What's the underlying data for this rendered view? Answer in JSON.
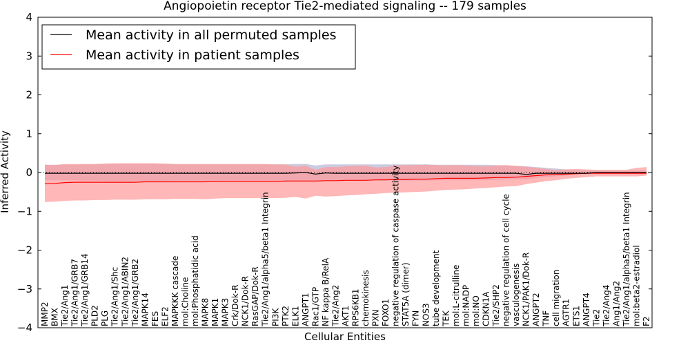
{
  "chart_data": {
    "type": "line",
    "title": "Angiopoietin receptor Tie2-mediated signaling -- 179 samples",
    "xlabel": "Cellular Entities",
    "ylabel": "Inferred Activity",
    "ylim": [
      -4,
      4
    ],
    "yticks": [
      "−4",
      "−3",
      "−2",
      "−1",
      "0",
      "1",
      "2",
      "3",
      "4"
    ],
    "grid": false,
    "legend_position": "top-left",
    "categories": [
      "MMP2",
      "BMX",
      "Tie2/Ang1",
      "Tie2/Ang1/GRB7",
      "Tie2/Ang1/GRB14",
      "PLD2",
      "PLG",
      "Tie2/Ang1/Shc",
      "Tie2/Ang1/ABIN2",
      "Tie2/Ang1/GRB2",
      "MAPK14",
      "FES",
      "ELF2",
      "MAPKKK cascade",
      "mol:Choline",
      "mol:Phosphatidic acid",
      "MAPK8",
      "MAPK1",
      "MAPK3",
      "Crk/Dok-R",
      "NCK1/Dok-R",
      "RasGAP/Dok-R",
      "Tie2/Ang1/alpha5/beta1 Integrin",
      "PI3K",
      "PTK2",
      "ELK1",
      "ANGPT1",
      "Rac1/GTP",
      "NF kappa B/RelA",
      "Tie2/Ang2",
      "AKT1",
      "RPS6KB1",
      "chemokinesis",
      "PXN",
      "FOXO1",
      "negative regulation of caspase activity",
      "STAT5A (dimer)",
      "FYN",
      "NOS3",
      "tube development",
      "TEK",
      "mol:L-citrulline",
      "mol:NADP",
      "mol:NO",
      "CDKN1A",
      "Tie2/SHP2",
      "negative regulation of cell cycle",
      "vasculogenesis",
      "NCK1/PAK1/Dok-R",
      "ANGPT2",
      "TNF",
      "cell migration",
      "AGTR1",
      "ETS1",
      "ANGPT4",
      "Tie2",
      "Tie2/Ang4",
      "Ang1/Ang2",
      "Tie2/Ang1/alpha5/beta1 Integrin",
      "mol:beta2-estradiol",
      "F2"
    ],
    "series": [
      {
        "name": "Mean activity in all permuted samples",
        "color": "#000000",
        "band_color": "#a0a0c8",
        "values": [
          -0.02,
          -0.02,
          -0.02,
          -0.02,
          -0.02,
          -0.02,
          -0.02,
          -0.02,
          -0.02,
          -0.02,
          -0.02,
          -0.02,
          -0.02,
          -0.02,
          -0.02,
          -0.02,
          -0.02,
          -0.02,
          -0.02,
          -0.02,
          -0.02,
          -0.02,
          -0.02,
          -0.02,
          -0.02,
          -0.01,
          0.0,
          -0.04,
          -0.01,
          -0.02,
          -0.02,
          -0.02,
          -0.02,
          -0.02,
          -0.02,
          -0.02,
          -0.02,
          -0.02,
          -0.02,
          -0.02,
          -0.02,
          -0.02,
          -0.02,
          -0.02,
          -0.02,
          -0.02,
          -0.02,
          -0.02,
          -0.05,
          -0.02,
          -0.02,
          -0.02,
          -0.02,
          -0.02,
          -0.02,
          0.0,
          0.0,
          0.0,
          0.0,
          0.0,
          0.0
        ],
        "upper": [
          0.2,
          0.2,
          0.2,
          0.2,
          0.21,
          0.21,
          0.22,
          0.22,
          0.22,
          0.22,
          0.22,
          0.22,
          0.22,
          0.21,
          0.21,
          0.21,
          0.21,
          0.21,
          0.21,
          0.21,
          0.21,
          0.21,
          0.21,
          0.21,
          0.21,
          0.22,
          0.22,
          0.18,
          0.21,
          0.21,
          0.21,
          0.21,
          0.21,
          0.21,
          0.21,
          0.21,
          0.21,
          0.21,
          0.21,
          0.2,
          0.2,
          0.2,
          0.2,
          0.2,
          0.2,
          0.19,
          0.18,
          0.17,
          0.16,
          0.14,
          0.12,
          0.1,
          0.08,
          0.06,
          0.05,
          0.05,
          0.05,
          0.05,
          0.05,
          0.05,
          0.05
        ],
        "lower": [
          -0.2,
          -0.2,
          -0.2,
          -0.2,
          -0.21,
          -0.21,
          -0.22,
          -0.22,
          -0.22,
          -0.22,
          -0.22,
          -0.22,
          -0.22,
          -0.21,
          -0.21,
          -0.21,
          -0.21,
          -0.21,
          -0.21,
          -0.21,
          -0.21,
          -0.21,
          -0.21,
          -0.21,
          -0.21,
          -0.22,
          -0.22,
          -0.24,
          -0.21,
          -0.21,
          -0.21,
          -0.21,
          -0.21,
          -0.21,
          -0.21,
          -0.21,
          -0.21,
          -0.21,
          -0.21,
          -0.2,
          -0.2,
          -0.2,
          -0.2,
          -0.2,
          -0.2,
          -0.19,
          -0.18,
          -0.17,
          -0.18,
          -0.14,
          -0.12,
          -0.1,
          -0.08,
          -0.06,
          -0.05,
          -0.05,
          -0.05,
          -0.05,
          -0.05,
          -0.05,
          -0.05
        ]
      },
      {
        "name": "Mean activity in patient samples",
        "color": "#ff0000",
        "band_color": "#ff9999",
        "values": [
          -0.29,
          -0.28,
          -0.26,
          -0.25,
          -0.25,
          -0.25,
          -0.25,
          -0.25,
          -0.25,
          -0.25,
          -0.24,
          -0.24,
          -0.24,
          -0.24,
          -0.24,
          -0.24,
          -0.24,
          -0.23,
          -0.23,
          -0.23,
          -0.23,
          -0.23,
          -0.23,
          -0.23,
          -0.22,
          -0.22,
          -0.22,
          -0.22,
          -0.21,
          -0.21,
          -0.2,
          -0.2,
          -0.2,
          -0.19,
          -0.19,
          -0.18,
          -0.18,
          -0.17,
          -0.17,
          -0.16,
          -0.15,
          -0.15,
          -0.15,
          -0.15,
          -0.14,
          -0.13,
          -0.13,
          -0.12,
          -0.1,
          -0.08,
          -0.06,
          -0.05,
          -0.04,
          -0.03,
          -0.02,
          -0.02,
          -0.02,
          -0.02,
          -0.02,
          -0.02,
          -0.02
        ],
        "upper": [
          0.2,
          0.19,
          0.22,
          0.22,
          0.22,
          0.22,
          0.23,
          0.24,
          0.24,
          0.24,
          0.24,
          0.24,
          0.23,
          0.22,
          0.22,
          0.22,
          0.22,
          0.22,
          0.22,
          0.22,
          0.22,
          0.22,
          0.22,
          0.21,
          0.21,
          0.15,
          0.18,
          0.07,
          0.14,
          0.14,
          0.16,
          0.17,
          0.18,
          0.13,
          0.14,
          0.18,
          0.19,
          0.19,
          0.2,
          0.19,
          0.18,
          0.19,
          0.18,
          0.17,
          0.16,
          0.18,
          0.19,
          0.17,
          0.15,
          0.12,
          0.09,
          0.06,
          0.08,
          0.09,
          0.08,
          0.07,
          0.07,
          0.07,
          0.07,
          0.12,
          0.14
        ],
        "lower": [
          -0.76,
          -0.75,
          -0.73,
          -0.72,
          -0.72,
          -0.71,
          -0.71,
          -0.7,
          -0.7,
          -0.7,
          -0.69,
          -0.69,
          -0.69,
          -0.68,
          -0.68,
          -0.68,
          -0.69,
          -0.67,
          -0.66,
          -0.66,
          -0.66,
          -0.66,
          -0.66,
          -0.66,
          -0.65,
          -0.63,
          -0.67,
          -0.6,
          -0.62,
          -0.61,
          -0.59,
          -0.58,
          -0.56,
          -0.55,
          -0.53,
          -0.52,
          -0.51,
          -0.5,
          -0.49,
          -0.47,
          -0.45,
          -0.44,
          -0.43,
          -0.41,
          -0.4,
          -0.38,
          -0.36,
          -0.35,
          -0.3,
          -0.26,
          -0.22,
          -0.2,
          -0.16,
          -0.14,
          -0.12,
          -0.1,
          -0.1,
          -0.1,
          -0.1,
          -0.1,
          -0.08
        ]
      }
    ]
  }
}
